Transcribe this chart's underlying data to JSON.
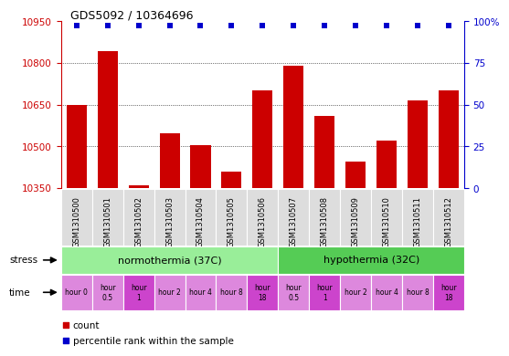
{
  "title": "GDS5092 / 10364696",
  "samples": [
    "GSM1310500",
    "GSM1310501",
    "GSM1310502",
    "GSM1310503",
    "GSM1310504",
    "GSM1310505",
    "GSM1310506",
    "GSM1310507",
    "GSM1310508",
    "GSM1310509",
    "GSM1310510",
    "GSM1310511",
    "GSM1310512"
  ],
  "bar_values": [
    10648,
    10843,
    10358,
    10548,
    10505,
    10408,
    10700,
    10790,
    10610,
    10445,
    10520,
    10665,
    10700
  ],
  "bar_color": "#cc0000",
  "percentile_color": "#0000cc",
  "ylim": [
    10350,
    10950
  ],
  "y2lim": [
    0,
    100
  ],
  "yticks": [
    10350,
    10500,
    10650,
    10800,
    10950
  ],
  "y2ticks": [
    0,
    25,
    50,
    75,
    100
  ],
  "stress_normothermia_label": "normothermia (37C)",
  "stress_hypothermia_label": "hypothermia (32C)",
  "stress_color_norm": "#99ee99",
  "stress_color_hypo": "#55cc55",
  "time_labels": [
    "hour 0",
    "hour\n0.5",
    "hour\n1",
    "hour 2",
    "hour 4",
    "hour 8",
    "hour\n18",
    "hour\n0.5",
    "hour\n1",
    "hour 2",
    "hour 4",
    "hour 8",
    "hour\n18"
  ],
  "time_colors": [
    "#dd88dd",
    "#dd88dd",
    "#cc44cc",
    "#dd88dd",
    "#dd88dd",
    "#dd88dd",
    "#cc44cc",
    "#dd88dd",
    "#cc44cc",
    "#dd88dd",
    "#dd88dd",
    "#dd88dd",
    "#cc44cc"
  ],
  "xtick_bg": "#dddddd",
  "legend_count_color": "#cc0000",
  "legend_percentile_color": "#0000cc",
  "background_color": "#ffffff"
}
